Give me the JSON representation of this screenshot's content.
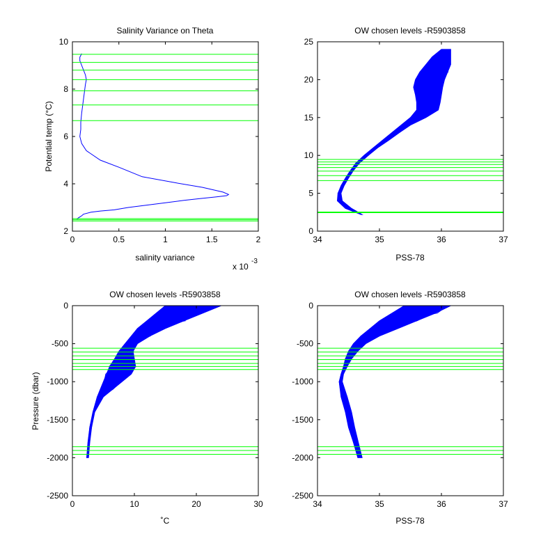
{
  "colors": {
    "profile": "#0000ff",
    "levels": "#00ff00",
    "axes": "#000000",
    "background": "#ffffff"
  },
  "chart_data": [
    {
      "id": "salvar",
      "type": "line",
      "title": "Salinity Variance on Theta",
      "xlabel": "salinity variance",
      "ylabel": "Potential temp (°C)",
      "x_exponent_label": "x 10",
      "x_exponent": "-3",
      "xlim": [
        0,
        2
      ],
      "ylim": [
        2,
        10
      ],
      "xticks": [
        0,
        0.5,
        1,
        1.5,
        2
      ],
      "yticks": [
        2,
        4,
        6,
        8,
        10
      ],
      "series": [
        {
          "kind": "profile",
          "x": [
            0.05,
            0.06,
            0.08,
            0.1,
            0.12,
            0.2,
            0.3,
            0.45,
            0.6,
            0.8,
            1.0,
            1.2,
            1.38,
            1.55,
            1.66,
            1.68,
            1.62,
            1.4,
            1.1,
            0.75,
            0.5,
            0.3,
            0.15,
            0.1,
            0.08,
            0.09,
            0.09,
            0.1,
            0.11,
            0.12,
            0.13,
            0.14,
            0.15,
            0.14,
            0.12,
            0.1,
            0.08,
            0.08,
            0.1
          ],
          "y": [
            2.5,
            2.55,
            2.6,
            2.65,
            2.72,
            2.8,
            2.85,
            2.9,
            3.0,
            3.1,
            3.2,
            3.3,
            3.38,
            3.45,
            3.5,
            3.55,
            3.65,
            3.85,
            4.05,
            4.3,
            4.7,
            5.0,
            5.4,
            5.7,
            6.0,
            6.3,
            6.6,
            7.0,
            7.3,
            7.6,
            7.9,
            8.2,
            8.4,
            8.6,
            8.8,
            9.0,
            9.2,
            9.35,
            9.5
          ]
        }
      ],
      "levels": [
        2.43,
        2.48,
        2.53,
        6.67,
        7.33,
        7.93,
        8.4,
        8.8,
        9.13,
        9.47
      ]
    },
    {
      "id": "ts",
      "type": "line",
      "title": "OW chosen levels -R5903858",
      "xlabel": "PSS-78",
      "ylabel": "",
      "xlim": [
        34,
        37
      ],
      "ylim": [
        0,
        25
      ],
      "xticks": [
        34,
        35,
        36,
        37
      ],
      "yticks": [
        0,
        5,
        10,
        15,
        20,
        25
      ],
      "band": {
        "y": [
          2.2,
          3.0,
          4.0,
          5.0,
          6.0,
          7.0,
          8.0,
          9.0,
          10.0,
          11.0,
          12.0,
          13.0,
          14.0,
          15.0,
          16.0,
          17.0,
          18.0,
          19.0,
          20.0,
          21.0,
          22.0,
          23.0,
          24.0
        ],
        "x_low": [
          34.7,
          34.45,
          34.32,
          34.33,
          34.38,
          34.45,
          34.53,
          34.62,
          34.75,
          34.9,
          35.05,
          35.2,
          35.35,
          35.5,
          35.6,
          35.6,
          35.58,
          35.55,
          35.58,
          35.65,
          35.75,
          35.85,
          36.0
        ],
        "x_high": [
          34.72,
          34.55,
          34.4,
          34.38,
          34.43,
          34.5,
          34.58,
          34.68,
          34.82,
          34.97,
          35.15,
          35.32,
          35.5,
          35.75,
          35.95,
          35.98,
          36.0,
          36.02,
          36.05,
          36.1,
          36.15,
          36.15,
          36.15
        ]
      },
      "levels": [
        2.43,
        2.48,
        2.53,
        6.67,
        7.33,
        7.93,
        8.4,
        8.8,
        9.13,
        9.47
      ]
    },
    {
      "id": "temp-pres",
      "type": "line",
      "title": "OW chosen levels -R5903858",
      "xlabel": "˚C",
      "ylabel": "Pressure (dbar)",
      "xlim": [
        0,
        30
      ],
      "ylim": [
        -2500,
        0
      ],
      "xticks": [
        0,
        10,
        20,
        30
      ],
      "yticks": [
        -2500,
        -2000,
        -1500,
        -1000,
        -500,
        0
      ],
      "band": {
        "y": [
          -2000,
          -1800,
          -1600,
          -1400,
          -1200,
          -1100,
          -1000,
          -900,
          -800,
          -700,
          -600,
          -500,
          -400,
          -300,
          -200,
          -100,
          0
        ],
        "x_low": [
          2.3,
          2.5,
          2.8,
          3.3,
          4.0,
          4.5,
          5.0,
          5.5,
          6.0,
          6.8,
          7.5,
          8.5,
          9.5,
          10.5,
          12.0,
          13.5,
          15.0
        ],
        "x_high": [
          2.6,
          2.8,
          3.1,
          3.6,
          5.0,
          6.5,
          8.0,
          9.5,
          10.2,
          10.0,
          9.8,
          10.5,
          12.5,
          15.0,
          18.0,
          21.0,
          24.0
        ]
      },
      "levels": [
        -560,
        -610,
        -660,
        -710,
        -760,
        -800,
        -840,
        -1855,
        -1905,
        -1955
      ]
    },
    {
      "id": "sal-pres",
      "type": "line",
      "title": "OW chosen levels -R5903858",
      "xlabel": "PSS-78",
      "ylabel": "",
      "xlim": [
        34,
        37
      ],
      "ylim": [
        -2500,
        0
      ],
      "xticks": [
        34,
        35,
        36,
        37
      ],
      "yticks": [
        -2500,
        -2000,
        -1500,
        -1000,
        -500,
        0
      ],
      "band": {
        "y": [
          -2000,
          -1800,
          -1600,
          -1400,
          -1200,
          -1000,
          -900,
          -800,
          -700,
          -600,
          -500,
          -400,
          -300,
          -200,
          -100,
          0
        ],
        "x_low": [
          34.65,
          34.58,
          34.5,
          34.45,
          34.38,
          34.35,
          34.38,
          34.42,
          34.45,
          34.5,
          34.58,
          34.7,
          34.85,
          35.0,
          35.2,
          35.4
        ],
        "x_high": [
          34.72,
          34.66,
          34.6,
          34.55,
          34.48,
          34.4,
          34.42,
          34.48,
          34.55,
          34.65,
          34.78,
          35.0,
          35.3,
          35.6,
          35.9,
          36.15
        ]
      },
      "levels": [
        -560,
        -610,
        -660,
        -710,
        -760,
        -800,
        -840,
        -1855,
        -1905,
        -1955
      ]
    }
  ]
}
